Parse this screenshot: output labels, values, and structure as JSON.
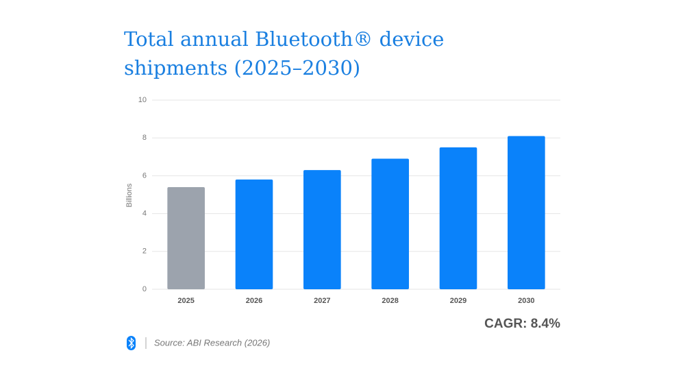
{
  "chart_data": {
    "type": "bar",
    "title": "Total annual Bluetooth® device shipments (2025–2030)",
    "y_label": "Billions",
    "categories": [
      "2025",
      "2026",
      "2027",
      "2028",
      "2029",
      "2030"
    ],
    "values": [
      5.4,
      5.8,
      6.3,
      6.9,
      7.5,
      8.1
    ],
    "colors": [
      "#9ca3ad",
      "#0a82fa",
      "#0a82fa",
      "#0a82fa",
      "#0a82fa",
      "#0a82fa"
    ],
    "ylim": [
      0,
      10
    ],
    "yticks": [
      0,
      2,
      4,
      6,
      8,
      10
    ],
    "grid": true,
    "annotation": "CAGR: 8.4%",
    "source": "Source: ABI Research (2026)"
  }
}
